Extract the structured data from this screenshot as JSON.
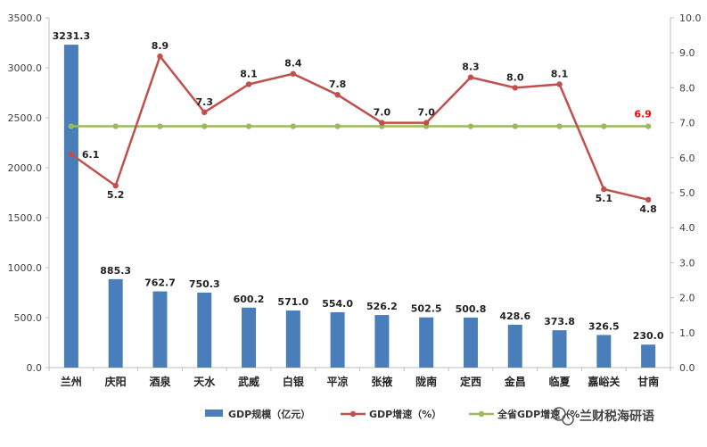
{
  "chart_data": {
    "type": "bar",
    "categories": [
      "兰州",
      "庆阳",
      "酒泉",
      "天水",
      "武威",
      "白银",
      "平凉",
      "张掖",
      "陇南",
      "定西",
      "金昌",
      "临夏",
      "嘉峪关",
      "甘南"
    ],
    "series": [
      {
        "name": "GDP规模（亿元）",
        "type": "bar",
        "axis": "left",
        "color": "#4a7ebb",
        "values": [
          3231.3,
          885.3,
          762.7,
          750.3,
          600.2,
          571.0,
          554.0,
          526.2,
          502.5,
          500.8,
          428.6,
          373.8,
          326.5,
          230.0
        ]
      },
      {
        "name": "GDP增速（%）",
        "type": "line",
        "axis": "right",
        "color": "#c0504d",
        "values": [
          6.1,
          5.2,
          8.9,
          7.3,
          8.1,
          8.4,
          7.8,
          7.0,
          7.0,
          8.3,
          8.0,
          8.1,
          5.1,
          4.8
        ]
      },
      {
        "name": "全省GDP增速（%",
        "type": "line",
        "axis": "right",
        "color": "#9bbb59",
        "values": [
          6.9,
          6.9,
          6.9,
          6.9,
          6.9,
          6.9,
          6.9,
          6.9,
          6.9,
          6.9,
          6.9,
          6.9,
          6.9,
          6.9
        ],
        "label": "6.9",
        "label_color": "#ff0000"
      }
    ],
    "y_left": {
      "ylim": [
        0,
        3500
      ],
      "ticks": [
        "0.0",
        "500.0",
        "1000.0",
        "1500.0",
        "2000.0",
        "2500.0",
        "3000.0",
        "3500.0"
      ]
    },
    "y_right": {
      "ylim": [
        0,
        10
      ],
      "ticks": [
        "0.0",
        "1.0",
        "2.0",
        "3.0",
        "4.0",
        "5.0",
        "6.0",
        "7.0",
        "8.0",
        "9.0",
        "10.0"
      ]
    },
    "bar_labels": [
      "3231.3",
      "885.3",
      "762.7",
      "750.3",
      "600.2",
      "571.0",
      "554.0",
      "526.2",
      "502.5",
      "500.8",
      "428.6",
      "373.8",
      "326.5",
      "230.0"
    ],
    "line_labels": [
      "6.1",
      "5.2",
      "8.9",
      "7.3",
      "8.1",
      "8.4",
      "7.8",
      "7.0",
      "7.0",
      "8.3",
      "8.0",
      "8.1",
      "5.1",
      "4.8"
    ],
    "grid": false,
    "legend": "bottom"
  },
  "watermark": {
    "text": "兰财税海研语",
    "icon": "wechat-icon"
  }
}
